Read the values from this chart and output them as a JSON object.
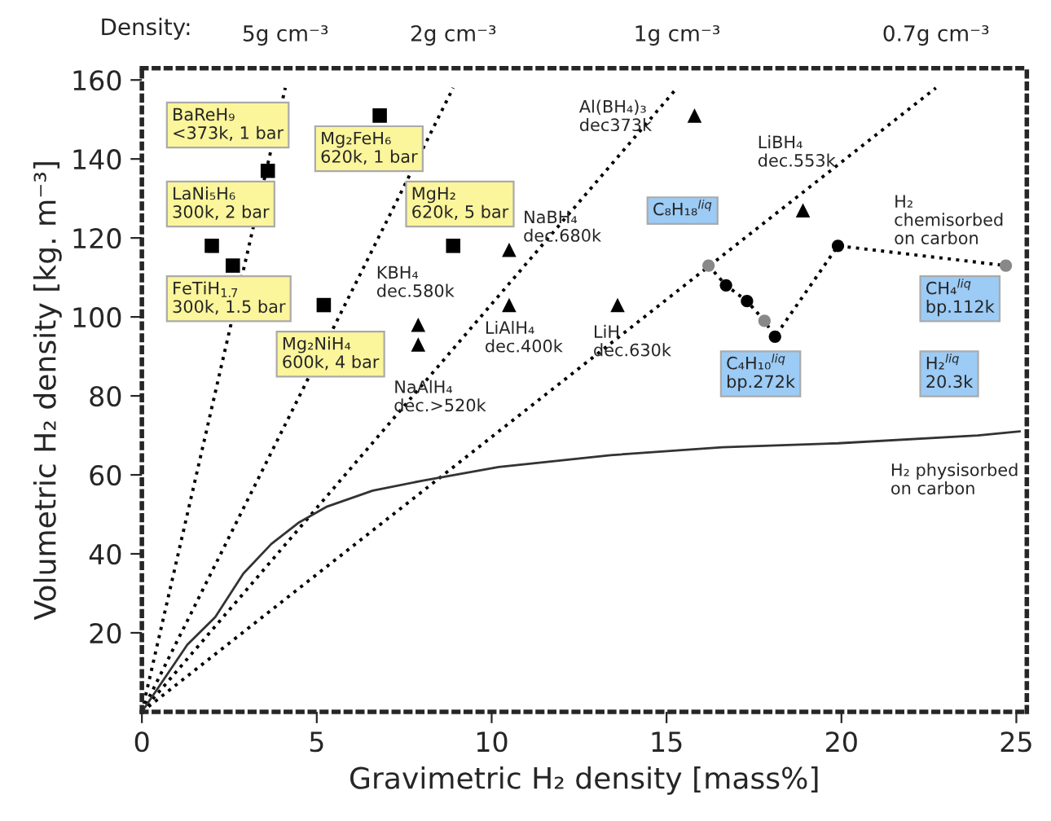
{
  "chart_data": {
    "type": "scatter",
    "xlabel": "Gravimetric H₂ density [mass%]",
    "ylabel": "Volumetric H₂ density [kg. m⁻³]",
    "xlim": [
      0,
      25.3
    ],
    "ylim": [
      0,
      163
    ],
    "xticks": [
      0,
      5,
      10,
      15,
      20,
      25
    ],
    "yticks": [
      20,
      40,
      60,
      80,
      100,
      120,
      140,
      160
    ],
    "grid": false,
    "legend": false,
    "series": [
      {
        "name": "5g cm⁻³",
        "type": "line",
        "line_style": "dotted",
        "marker": "none",
        "color": "#000000",
        "x": [
          0,
          4.1
        ],
        "values": [
          0,
          158
        ]
      },
      {
        "name": "2g cm⁻³",
        "type": "line",
        "line_style": "dotted",
        "marker": "none",
        "color": "#000000",
        "x": [
          0,
          8.9
        ],
        "values": [
          0,
          158
        ]
      },
      {
        "name": "1g cm⁻³",
        "type": "line",
        "line_style": "dotted",
        "marker": "none",
        "color": "#000000",
        "x": [
          0,
          15.3
        ],
        "values": [
          0,
          158
        ]
      },
      {
        "name": "0.7g cm⁻³",
        "type": "line",
        "line_style": "dotted",
        "marker": "none",
        "color": "#000000",
        "x": [
          0,
          22.7
        ],
        "values": [
          0,
          158
        ]
      },
      {
        "type": "line",
        "line_style": "solid",
        "marker": "none",
        "color": "#333333",
        "x": [
          0,
          1.3,
          2.1,
          2.9,
          3.7,
          4.5,
          5.3,
          6.6,
          8.0,
          10.2,
          13.4,
          16.6,
          19.9,
          23.9,
          25.1
        ],
        "values": [
          0,
          17,
          24,
          35,
          42.5,
          48,
          52,
          56,
          58.5,
          62,
          65,
          67,
          68,
          70,
          71
        ]
      },
      {
        "marker": "square",
        "color": "#000000",
        "x": [
          3.6,
          6.8,
          2.0,
          2.6,
          5.2,
          8.9
        ],
        "values": [
          137,
          151,
          118,
          113,
          103,
          118
        ]
      },
      {
        "marker": "triangle",
        "color": "#000000",
        "x": [
          10.5,
          10.5,
          7.9,
          7.9,
          15.8,
          18.9,
          13.6
        ],
        "values": [
          117,
          103,
          98,
          93,
          151,
          127,
          103
        ]
      },
      {
        "type": "line",
        "line_style": "dotted",
        "marker": "circle",
        "color": "#000000",
        "colors": [
          "#888888",
          "#000000",
          "#000000",
          "#888888",
          "#000000",
          "#000000",
          "#888888"
        ],
        "x": [
          16.2,
          16.7,
          17.3,
          17.8,
          18.1,
          19.9,
          24.7
        ],
        "values": [
          113,
          108,
          104,
          99,
          95,
          118,
          113
        ]
      }
    ],
    "annotations": [
      "Density:",
      {
        "text": "BaReH₉\n<373k, 1 bar",
        "x": 3.6,
        "y": 137
      },
      {
        "text": "LaNi₅H₆\n300k, 2 bar",
        "x": 2.0,
        "y": 118
      },
      {
        "text": "FeTiH$_{1.7}$\n300k, 1.5 bar",
        "x": 2.6,
        "y": 113
      },
      {
        "text": "Mg₂FeH₆\n620k, 1 bar",
        "x": 6.8,
        "y": 151
      },
      {
        "text": "MgH₂\n620k, 5 bar",
        "x": 8.9,
        "y": 118
      },
      {
        "text": "Mg₂NiH₄\n600k, 4 bar",
        "x": 5.2,
        "y": 103
      },
      {
        "text": "C₈H₁₈$^{liq}$",
        "x": 16.2,
        "y": 113
      },
      {
        "text": "C₄H₁₀$^{liq}$\nbp.272k",
        "x": 18.1,
        "y": 95
      },
      {
        "text": "CH₄$^{liq}$\nbp.112k",
        "x": 24.7,
        "y": 113
      },
      "H₂$^{liq}$\n20.3k",
      {
        "text": "KBH₄\ndec.580k",
        "x": 7.9,
        "y": 98
      },
      {
        "text": "NaAlH₄\ndec.>520k",
        "x": 7.9,
        "y": 93
      },
      {
        "text": "LiAlH₄\ndec.400k",
        "x": 10.5,
        "y": 103
      },
      {
        "text": "NaBH₄\ndec.680k",
        "x": 10.5,
        "y": 117
      },
      {
        "text": "Al(BH₄)₃\ndec373k",
        "x": 15.8,
        "y": 151
      },
      {
        "text": "LiBH₄\ndec.553k",
        "x": 18.9,
        "y": 127
      },
      {
        "text": "LiH\ndec.630k",
        "x": 13.6,
        "y": 103
      },
      "H₂\nchemisorbed\non carbon",
      {
        "text": "H₂ physisorbed\non carbon",
        "x": 23.9,
        "y": 70
      }
    ]
  }
}
